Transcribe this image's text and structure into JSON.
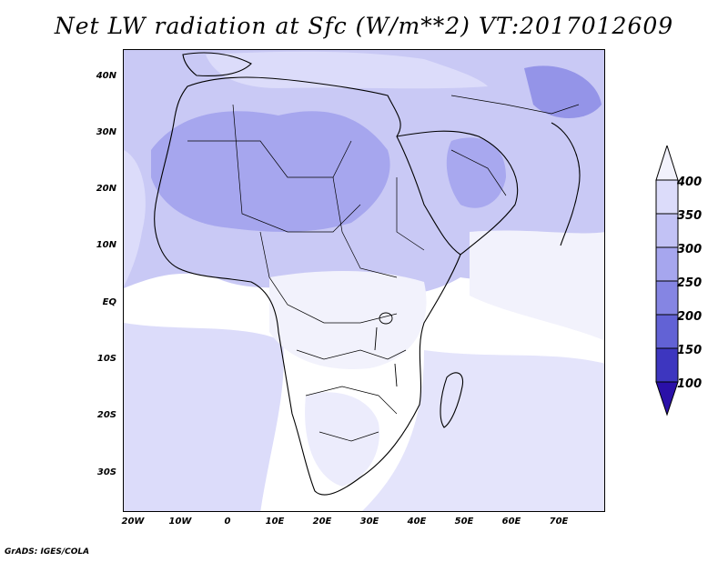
{
  "title": "Net LW radiation at Sfc (W/m**2) VT:2017012609",
  "footer": "GrADS: IGES/COLA",
  "lat_labels": [
    "40N",
    "30N",
    "20N",
    "10N",
    "EQ",
    "10S",
    "20S",
    "30S"
  ],
  "lon_labels": [
    "20W",
    "10W",
    "0",
    "10E",
    "20E",
    "30E",
    "40E",
    "50E",
    "60E",
    "70E"
  ],
  "colorbar": {
    "levels": [
      "400",
      "350",
      "300",
      "250",
      "200",
      "150",
      "100"
    ],
    "colors": [
      "#f2f2fc",
      "#dcdcfa",
      "#c2c2f5",
      "#a6a6ee",
      "#8585e3",
      "#6262d5",
      "#3d36bf",
      "#2a10a8"
    ]
  },
  "chart_data": {
    "type": "heatmap",
    "title": "Net LW radiation at Sfc (W/m**2) VT:2017012609",
    "extent": {
      "lon": [
        -22,
        80
      ],
      "lat": [
        -37,
        45
      ]
    },
    "xticks": [
      "20W",
      "10W",
      "0",
      "10E",
      "20E",
      "30E",
      "40E",
      "50E",
      "60E",
      "70E"
    ],
    "yticks": [
      "40N",
      "30N",
      "20N",
      "10N",
      "EQ",
      "10S",
      "20S",
      "30S"
    ],
    "contour_levels": [
      100,
      150,
      200,
      250,
      300,
      350,
      400
    ],
    "colorbar_extend": "both",
    "colorbar_placement": "right"
  }
}
